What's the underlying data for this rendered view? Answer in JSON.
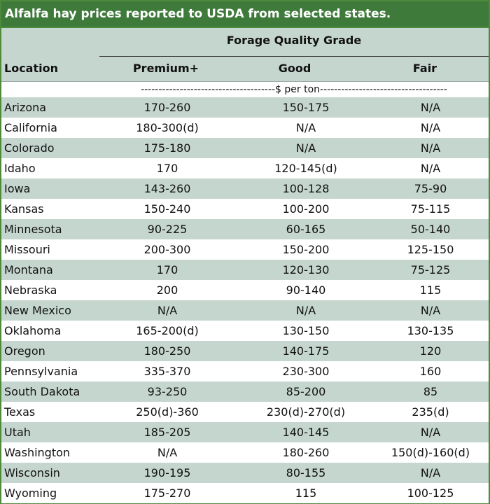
{
  "title": "Alfalfa hay prices reported to USDA from selected states.",
  "header": {
    "group_label": "Forage Quality Grade",
    "location_label": "Location",
    "columns": [
      "Premium+",
      "Good",
      "Fair"
    ]
  },
  "units": "--------------------------------------$ per ton------------------------------------",
  "rows": [
    {
      "location": "Arizona",
      "premium": "170-260",
      "good": "150-175",
      "fair": "N/A"
    },
    {
      "location": "California",
      "premium": "180-300(d)",
      "good": "N/A",
      "fair": "N/A"
    },
    {
      "location": "Colorado",
      "premium": "175-180",
      "good": "N/A",
      "fair": "N/A"
    },
    {
      "location": "Idaho",
      "premium": "170",
      "good": "120-145(d)",
      "fair": "N/A"
    },
    {
      "location": "Iowa",
      "premium": "143-260",
      "good": "100-128",
      "fair": "75-90"
    },
    {
      "location": "Kansas",
      "premium": "150-240",
      "good": "100-200",
      "fair": "75-115"
    },
    {
      "location": "Minnesota",
      "premium": "90-225",
      "good": "60-165",
      "fair": "50-140"
    },
    {
      "location": "Missouri",
      "premium": "200-300",
      "good": "150-200",
      "fair": "125-150"
    },
    {
      "location": "Montana",
      "premium": "170",
      "good": "120-130",
      "fair": "75-125"
    },
    {
      "location": "Nebraska",
      "premium": "200",
      "good": "90-140",
      "fair": "115"
    },
    {
      "location": "New Mexico",
      "premium": "N/A",
      "good": "N/A",
      "fair": "N/A"
    },
    {
      "location": "Oklahoma",
      "premium": "165-200(d)",
      "good": "130-150",
      "fair": "130-135"
    },
    {
      "location": "Oregon",
      "premium": "180-250",
      "good": "140-175",
      "fair": "120"
    },
    {
      "location": "Pennsylvania",
      "premium": "335-370",
      "good": "230-300",
      "fair": "160"
    },
    {
      "location": "South Dakota",
      "premium": "93-250",
      "good": "85-200",
      "fair": "85"
    },
    {
      "location": "Texas",
      "premium": "250(d)-360",
      "good": "230(d)-270(d)",
      "fair": "235(d)"
    },
    {
      "location": "Utah",
      "premium": "185-205",
      "good": "140-145",
      "fair": "N/A"
    },
    {
      "location": "Washington",
      "premium": "N/A",
      "good": "180-260",
      "fair": "150(d)-160(d)"
    },
    {
      "location": "Wisconsin",
      "premium": "190-195",
      "good": "80-155",
      "fair": "N/A"
    },
    {
      "location": "Wyoming",
      "premium": "175-270",
      "good": "115",
      "fair": "100-125"
    }
  ],
  "colors": {
    "title_bg": "#3e7a3a",
    "band": "#c5d6cf",
    "border": "#4d8a3c"
  }
}
